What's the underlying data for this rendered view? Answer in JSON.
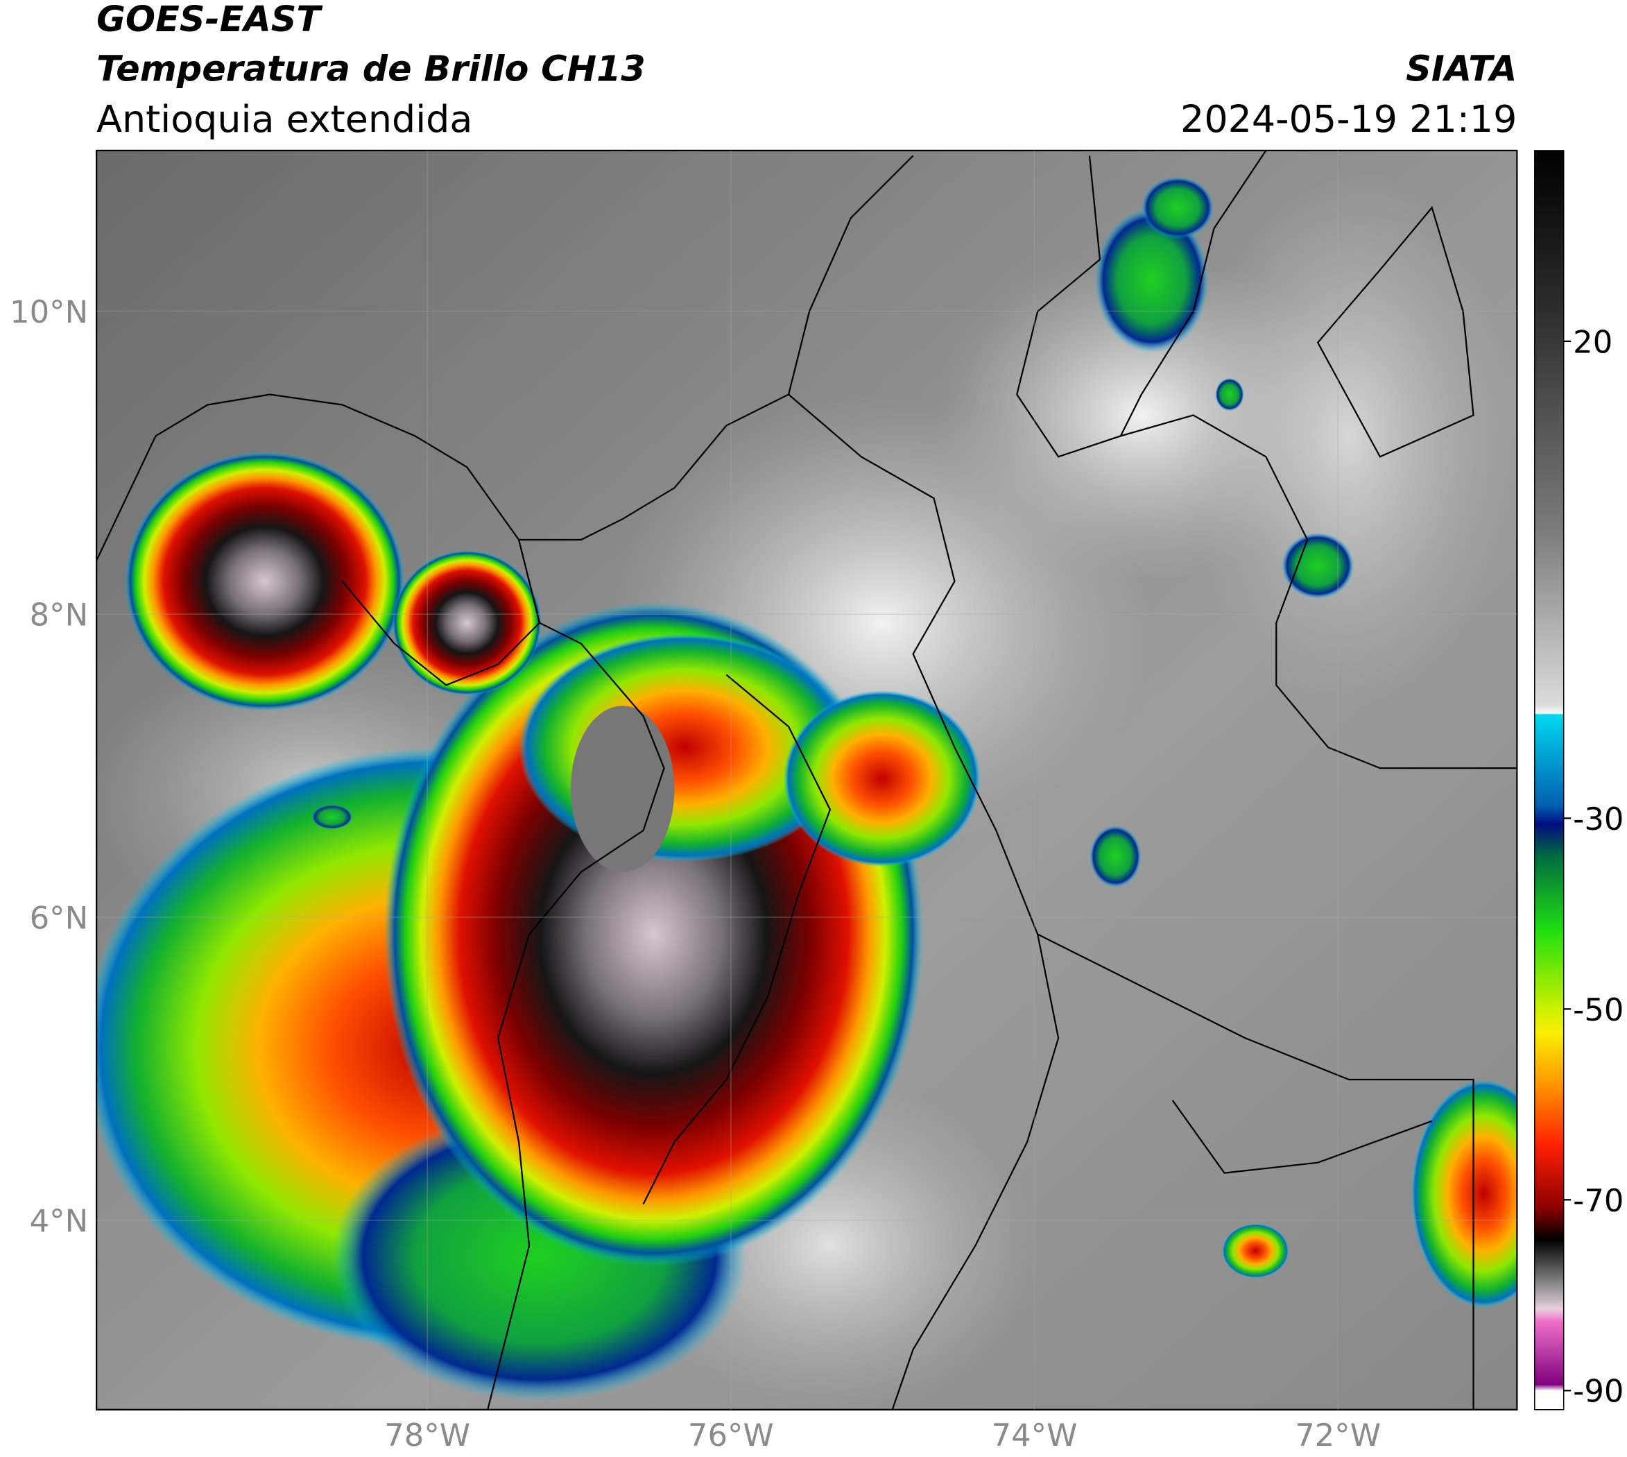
{
  "header": {
    "line1": "GOES-EAST",
    "line2": "Temperatura de Brillo CH13",
    "region": "Antioquia extendida",
    "agency": "SIATA",
    "datetime": "2024-05-19 21:19"
  },
  "map": {
    "xlim": [
      -80.18,
      -70.82
    ],
    "ylim": [
      2.75,
      11.06
    ],
    "xticks": [
      {
        "value": -78,
        "label": "78°W"
      },
      {
        "value": -76,
        "label": "76°W"
      },
      {
        "value": -74,
        "label": "74°W"
      },
      {
        "value": -72,
        "label": "72°W"
      }
    ],
    "yticks": [
      {
        "value": 4,
        "label": "4°N"
      },
      {
        "value": 6,
        "label": "6°N"
      },
      {
        "value": 8,
        "label": "8°N"
      },
      {
        "value": 10,
        "label": "10°N"
      }
    ]
  },
  "colorbar": {
    "lim": [
      -92,
      40
    ],
    "ticks": [
      20,
      -30,
      -50,
      -70,
      -90
    ]
  }
}
